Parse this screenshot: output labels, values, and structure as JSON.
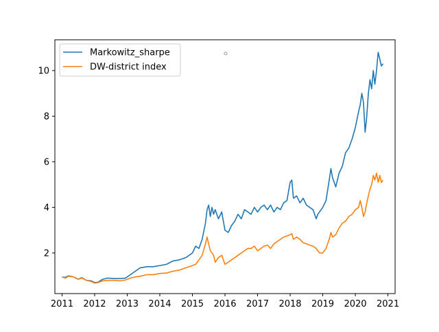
{
  "chart_data": {
    "type": "line",
    "title": "",
    "xlabel": "",
    "ylabel": "",
    "xlim": [
      2010.78,
      2021.22
    ],
    "ylim": [
      0.22,
      11.35
    ],
    "x_ticks": [
      2011,
      2012,
      2013,
      2014,
      2015,
      2016,
      2017,
      2018,
      2019,
      2020,
      2021
    ],
    "x_tick_labels": [
      "2011",
      "2012",
      "2013",
      "2014",
      "2015",
      "2016",
      "2017",
      "2018",
      "2019",
      "2020",
      "2021"
    ],
    "y_ticks": [
      2,
      4,
      6,
      8,
      10
    ],
    "y_tick_labels": [
      "2",
      "4",
      "6",
      "8",
      "10"
    ],
    "grid": false,
    "legend_position": "upper-left",
    "series": [
      {
        "name": "Markowitz_sharpe",
        "color": "#1f77b4",
        "x": [
          2011.0,
          2011.1,
          2011.2,
          2011.35,
          2011.5,
          2011.6,
          2011.75,
          2011.9,
          2012.0,
          2012.1,
          2012.25,
          2012.4,
          2012.6,
          2012.8,
          2012.95,
          2013.1,
          2013.25,
          2013.4,
          2013.6,
          2013.8,
          2014.0,
          2014.2,
          2014.4,
          2014.6,
          2014.8,
          2015.0,
          2015.1,
          2015.2,
          2015.3,
          2015.4,
          2015.45,
          2015.5,
          2015.55,
          2015.6,
          2015.65,
          2015.7,
          2015.8,
          2015.9,
          2016.0,
          2016.1,
          2016.2,
          2016.3,
          2016.4,
          2016.5,
          2016.6,
          2016.7,
          2016.8,
          2016.9,
          2017.0,
          2017.1,
          2017.2,
          2017.3,
          2017.4,
          2017.5,
          2017.6,
          2017.7,
          2017.8,
          2017.9,
          2018.0,
          2018.05,
          2018.1,
          2018.2,
          2018.3,
          2018.4,
          2018.5,
          2018.6,
          2018.7,
          2018.8,
          2018.85,
          2018.9,
          2019.0,
          2019.1,
          2019.2,
          2019.25,
          2019.3,
          2019.4,
          2019.5,
          2019.6,
          2019.7,
          2019.8,
          2019.9,
          2020.0,
          2020.1,
          2020.15,
          2020.2,
          2020.25,
          2020.3,
          2020.35,
          2020.4,
          2020.45,
          2020.5,
          2020.55,
          2020.6,
          2020.65,
          2020.7,
          2020.75,
          2020.8,
          2020.85
        ],
        "y": [
          0.95,
          0.93,
          1.0,
          0.95,
          0.85,
          0.92,
          0.8,
          0.78,
          0.7,
          0.72,
          0.85,
          0.9,
          0.88,
          0.88,
          0.9,
          1.05,
          1.2,
          1.35,
          1.4,
          1.4,
          1.45,
          1.5,
          1.65,
          1.7,
          1.8,
          2.0,
          2.3,
          2.2,
          2.6,
          3.3,
          3.9,
          4.1,
          3.6,
          4.0,
          3.7,
          3.9,
          3.5,
          3.8,
          3.0,
          2.9,
          3.2,
          3.4,
          3.7,
          3.5,
          3.9,
          3.8,
          3.7,
          4.0,
          3.8,
          4.0,
          4.1,
          3.9,
          4.1,
          3.8,
          4.0,
          3.9,
          4.2,
          4.3,
          5.1,
          5.2,
          4.4,
          4.5,
          4.2,
          4.4,
          4.1,
          4.0,
          3.9,
          3.5,
          3.7,
          3.8,
          4.0,
          4.3,
          5.2,
          5.7,
          5.3,
          4.9,
          5.5,
          5.8,
          6.4,
          6.6,
          7.0,
          7.5,
          8.2,
          8.5,
          9.0,
          8.6,
          7.3,
          8.0,
          9.0,
          9.6,
          9.2,
          10.0,
          9.4,
          10.0,
          10.8,
          10.5,
          10.2,
          10.3
        ]
      },
      {
        "name": "DW-district index",
        "color": "#ff7f0e",
        "x": [
          2011.0,
          2011.1,
          2011.2,
          2011.35,
          2011.5,
          2011.6,
          2011.75,
          2011.9,
          2012.0,
          2012.1,
          2012.25,
          2012.4,
          2012.6,
          2012.8,
          2012.95,
          2013.1,
          2013.25,
          2013.4,
          2013.6,
          2013.8,
          2014.0,
          2014.2,
          2014.4,
          2014.6,
          2014.8,
          2015.0,
          2015.1,
          2015.2,
          2015.3,
          2015.4,
          2015.45,
          2015.5,
          2015.55,
          2015.6,
          2015.65,
          2015.7,
          2015.8,
          2015.9,
          2016.0,
          2016.1,
          2016.2,
          2016.3,
          2016.4,
          2016.5,
          2016.6,
          2016.7,
          2016.8,
          2016.9,
          2017.0,
          2017.1,
          2017.2,
          2017.3,
          2017.4,
          2017.5,
          2017.6,
          2017.7,
          2017.8,
          2017.9,
          2018.0,
          2018.05,
          2018.1,
          2018.2,
          2018.3,
          2018.4,
          2018.5,
          2018.6,
          2018.7,
          2018.8,
          2018.85,
          2018.9,
          2019.0,
          2019.1,
          2019.2,
          2019.25,
          2019.3,
          2019.4,
          2019.5,
          2019.6,
          2019.7,
          2019.8,
          2019.9,
          2020.0,
          2020.1,
          2020.15,
          2020.2,
          2020.25,
          2020.3,
          2020.35,
          2020.4,
          2020.45,
          2020.5,
          2020.55,
          2020.6,
          2020.65,
          2020.7,
          2020.75,
          2020.8,
          2020.85
        ],
        "y": [
          0.95,
          0.9,
          0.98,
          0.95,
          0.85,
          0.9,
          0.8,
          0.75,
          0.68,
          0.7,
          0.78,
          0.8,
          0.8,
          0.78,
          0.82,
          0.9,
          0.95,
          0.98,
          1.05,
          1.05,
          1.1,
          1.12,
          1.2,
          1.25,
          1.35,
          1.45,
          1.5,
          1.7,
          1.9,
          2.4,
          2.7,
          2.4,
          2.1,
          2.0,
          1.9,
          1.6,
          1.8,
          1.9,
          1.5,
          1.6,
          1.7,
          1.8,
          1.9,
          2.0,
          2.1,
          2.2,
          2.2,
          2.3,
          2.1,
          2.2,
          2.3,
          2.35,
          2.2,
          2.4,
          2.5,
          2.6,
          2.7,
          2.75,
          2.8,
          2.85,
          2.6,
          2.7,
          2.6,
          2.45,
          2.4,
          2.35,
          2.3,
          2.2,
          2.1,
          2.0,
          2.0,
          2.2,
          2.6,
          2.9,
          2.7,
          2.8,
          3.1,
          3.3,
          3.4,
          3.6,
          3.7,
          3.9,
          4.0,
          4.3,
          4.0,
          3.6,
          3.8,
          4.2,
          4.5,
          4.8,
          5.0,
          5.4,
          5.2,
          5.5,
          5.1,
          5.4,
          5.1,
          5.2
        ]
      }
    ]
  }
}
